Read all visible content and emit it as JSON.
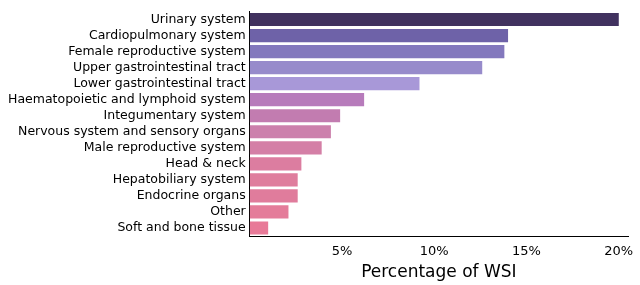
{
  "chart_data": {
    "type": "bar",
    "orientation": "horizontal",
    "categories": [
      "Urinary system",
      "Cardiopulmonary system",
      "Female reproductive system",
      "Upper gastrointestinal tract",
      "Lower gastrointestinal tract",
      "Haematopoietic and lymphoid system",
      "Integumentary system",
      "Nervous system and sensory organs",
      "Male reproductive system",
      "Head & neck",
      "Hepatobiliary system",
      "Endocrine organs",
      "Other",
      "Soft and bone tissue"
    ],
    "values": [
      20.0,
      14.0,
      13.8,
      12.6,
      9.2,
      6.2,
      4.9,
      4.4,
      3.9,
      2.8,
      2.6,
      2.6,
      2.1,
      1.0
    ],
    "colors": [
      "#41325f",
      "#6e62a8",
      "#8378bd",
      "#978bcb",
      "#a898d8",
      "#b77bbb",
      "#c27cb0",
      "#cc80ac",
      "#d47fa6",
      "#dc7da0",
      "#df7d9d",
      "#e07c9c",
      "#e47c9a",
      "#e87a98"
    ],
    "x_label": "Percentage of WSI",
    "xlim": [
      0,
      20.5
    ],
    "xticks": [
      {
        "value": 5,
        "label": "5%"
      },
      {
        "value": 10,
        "label": "10%"
      },
      {
        "value": 15,
        "label": "15%"
      },
      {
        "value": 20,
        "label": "20%"
      }
    ],
    "grid": false
  }
}
